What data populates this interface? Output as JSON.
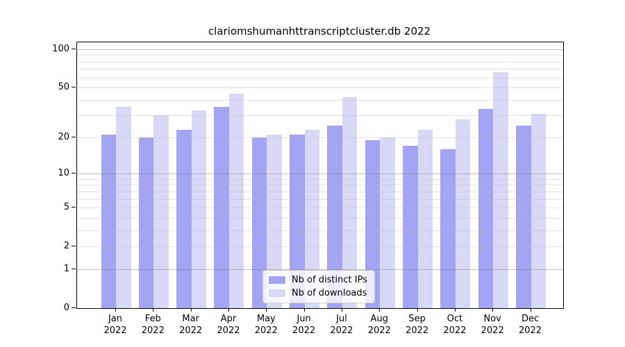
{
  "title": "clariomshumanhttranscriptcluster.db 2022",
  "chart_data": {
    "type": "bar",
    "title": "clariomshumanhttranscriptcluster.db 2022",
    "categories": [
      "Jan",
      "Feb",
      "Mar",
      "Apr",
      "May",
      "Jun",
      "Jul",
      "Aug",
      "Sep",
      "Oct",
      "Nov",
      "Dec"
    ],
    "category_second_line": "2022",
    "series": [
      {
        "name": "Nb of distinct IPs",
        "color": "#a4a4f4",
        "values": [
          21,
          20,
          23,
          35,
          20,
          21,
          25,
          19,
          17,
          16,
          34,
          25
        ]
      },
      {
        "name": "Nb of downloads",
        "color": "#d8d8f7",
        "values": [
          35,
          30,
          33,
          45,
          21,
          23,
          42,
          20,
          23,
          28,
          66,
          31
        ]
      }
    ],
    "xlabel": "",
    "ylabel": "",
    "yscale": "log1p",
    "ylim": [
      0,
      113
    ],
    "yticks": [
      0,
      1,
      2,
      5,
      10,
      20,
      50,
      100
    ],
    "grid_major": [
      1,
      10,
      100
    ],
    "grid_minor": [
      2,
      3,
      4,
      5,
      6,
      7,
      8,
      9,
      20,
      30,
      40,
      50,
      60,
      70,
      80,
      90
    ],
    "grid": true,
    "legend_position": "lower center",
    "axis_color": "#000000",
    "grid_major_color": "#b0b0b0",
    "grid_minor_color": "#e4e4e4"
  }
}
